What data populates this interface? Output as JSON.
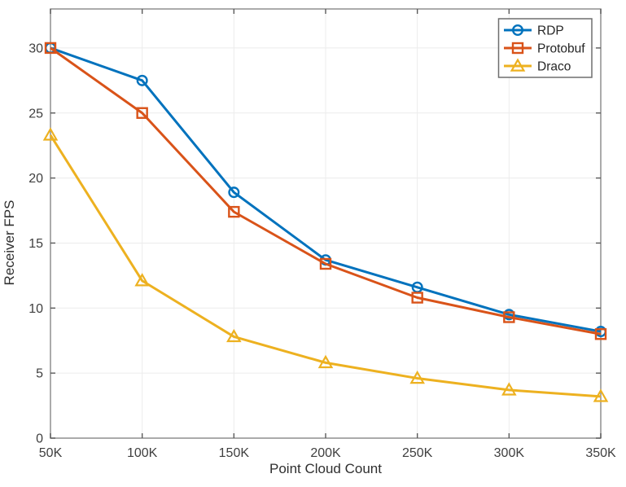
{
  "chart_data": {
    "type": "line",
    "title": "",
    "xlabel": "Point Cloud Count",
    "ylabel": "Receiver FPS",
    "x": [
      50,
      100,
      150,
      200,
      250,
      300,
      350
    ],
    "x_tick_labels": [
      "50K",
      "100K",
      "150K",
      "200K",
      "250K",
      "300K",
      "350K"
    ],
    "y_ticks": [
      0,
      5,
      10,
      15,
      20,
      25,
      30
    ],
    "xlim": [
      50,
      350
    ],
    "ylim": [
      0,
      33
    ],
    "grid": true,
    "series": [
      {
        "name": "RDP",
        "color": "#0072BD",
        "marker": "circle",
        "values": [
          30,
          27.5,
          18.9,
          13.7,
          11.6,
          9.5,
          8.2
        ]
      },
      {
        "name": "Protobuf",
        "color": "#D95319",
        "marker": "square",
        "values": [
          30,
          25.0,
          17.4,
          13.4,
          10.8,
          9.3,
          8.0
        ]
      },
      {
        "name": "Draco",
        "color": "#EDB120",
        "marker": "triangle",
        "values": [
          23.3,
          12.1,
          7.8,
          5.8,
          4.6,
          3.7,
          3.2
        ]
      }
    ],
    "legend": {
      "position": "top-right",
      "items": [
        "RDP",
        "Protobuf",
        "Draco"
      ],
      "border_color": "#6e6e6e",
      "background": "#ffffff"
    },
    "colors": {
      "axis": "#8f8f8f",
      "grid": "#ececec",
      "tick": "#5a5a5a",
      "tick_label": "#3f3f3f",
      "axis_title": "#2f2f2f",
      "background": "#ffffff"
    }
  }
}
